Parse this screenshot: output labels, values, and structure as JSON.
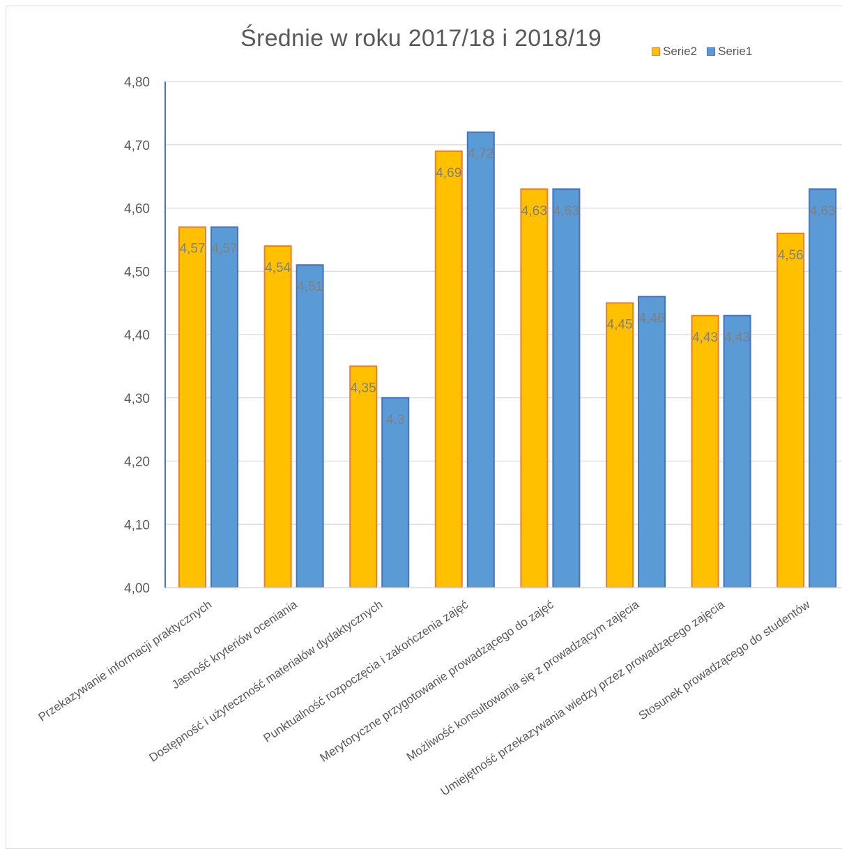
{
  "chart_data": {
    "type": "bar",
    "title": "Średnie  w roku 2017/18 i 2018/19",
    "categories": [
      "Przekazywanie informacji praktycznych",
      "Jasność kryteriów oceniania",
      "Dostępność i użyteczność materiałów dydaktycznych",
      "Punktualność rozpoczęcia i zakończenia zajęć",
      "Merytoryczne przygotowanie prowadzącego do zajęć",
      "Możliwość konsultowania się z prowadzącym zajęcia",
      "Umiejętność przekazywania wiedzy przez prowadzącego zajęcia",
      "Stosunek prowadzącego do studentów"
    ],
    "series": [
      {
        "name": "Serie2",
        "color": "#FFC000",
        "border": "#ED7D31",
        "values": [
          4.57,
          4.54,
          4.35,
          4.69,
          4.63,
          4.45,
          4.43,
          4.56
        ],
        "labels": [
          "4,57",
          "4,54",
          "4,35",
          "4,69",
          "4,63",
          "4,45",
          "4,43",
          "4,56"
        ]
      },
      {
        "name": "Serie1",
        "color": "#5B9BD5",
        "border": "#4472C4",
        "values": [
          4.57,
          4.51,
          4.3,
          4.72,
          4.63,
          4.46,
          4.43,
          4.63
        ],
        "labels": [
          "4,57",
          "4,51",
          "4,3",
          "4,72",
          "4,63",
          "4,46",
          "4,43",
          "4,63"
        ]
      }
    ],
    "ylim": [
      4.0,
      4.8
    ],
    "yticks": [
      "4,00",
      "4,10",
      "4,20",
      "4,30",
      "4,40",
      "4,50",
      "4,60",
      "4,70",
      "4,80"
    ],
    "grid": true,
    "legend_position": "top-right",
    "xlabel": "",
    "ylabel": ""
  },
  "colors": {
    "text": "#595959",
    "grid": "#d9d9d9",
    "axis": "#4472C4",
    "data_label": "#7f7f7f"
  }
}
